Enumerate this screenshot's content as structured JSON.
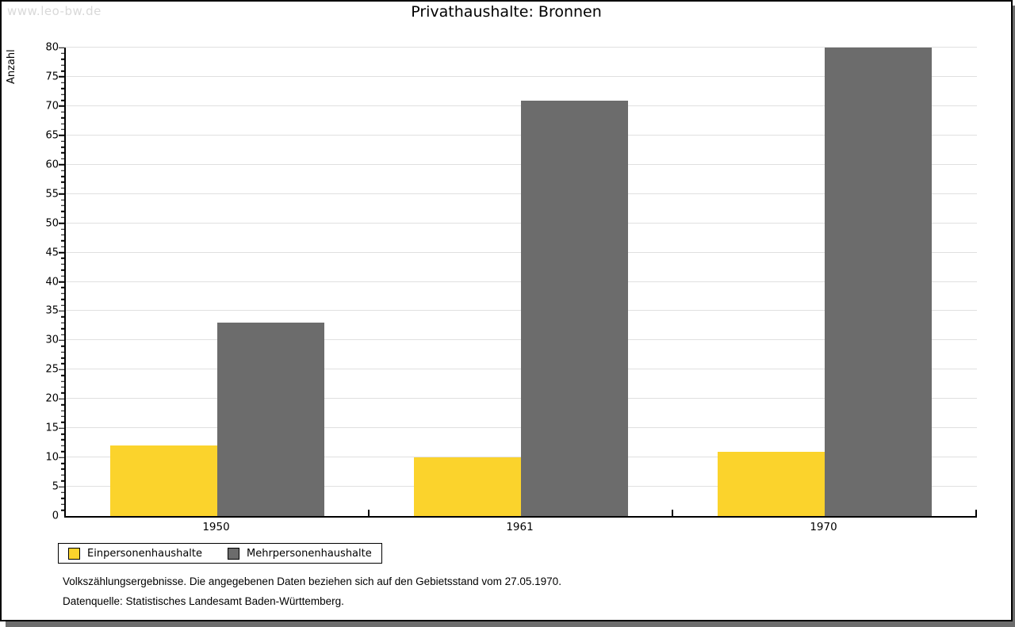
{
  "watermark": "www.leo-bw.de",
  "chart_data": {
    "type": "bar",
    "title": "Privathaushalte: Bronnen",
    "categories": [
      "1950",
      "1961",
      "1970"
    ],
    "series": [
      {
        "name": "Einpersonenhaushalte",
        "color": "#fbd32c",
        "values": [
          12,
          10,
          11
        ]
      },
      {
        "name": "Mehrpersonenhaushalte",
        "color": "#6c6c6c",
        "values": [
          33,
          71,
          80
        ]
      }
    ],
    "xlabel": "",
    "ylabel": "Anzahl",
    "ylim": [
      0,
      80
    ],
    "ytick_step": 5,
    "yminor_step": 1,
    "grid": true,
    "legend_position": "bottom-left"
  },
  "colors": {
    "grid": "#e0e0e0",
    "axis": "#000000",
    "watermark": "#d9d9d9",
    "shadow": "#6c6c6c"
  },
  "footnotes": [
    "Volkszählungsergebnisse. Die angegebenen Daten beziehen sich auf den Gebietsstand vom 27.05.1970.",
    "Datenquelle: Statistisches Landesamt Baden-Württemberg."
  ]
}
